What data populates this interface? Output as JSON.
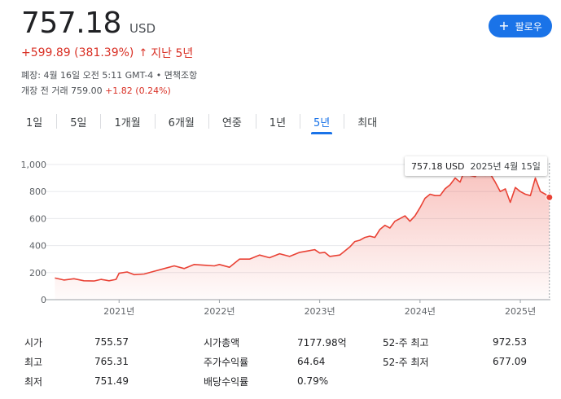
{
  "quote": {
    "price": "757.18",
    "currency": "USD",
    "change": "+599.89 (381.39%)",
    "change_arrow": "↑",
    "period_label": "지난 5년",
    "close_meta": "폐장: 4월 16일 오전 5:11 GMT-4 • 면책조항",
    "premarket_prefix": "개장 전 거래 759.00",
    "premarket_change": "+1.82 (0.24%)"
  },
  "follow_button": {
    "icon": "plus-icon",
    "label": "팔로우"
  },
  "range_tabs": [
    "1일",
    "5일",
    "1개월",
    "6개월",
    "연중",
    "1년",
    "5년",
    "최대"
  ],
  "active_tab": "5년",
  "tooltip": {
    "value": "757.18 USD",
    "date": "2025년 4월 15일"
  },
  "colors": {
    "accent": "#1a73e8",
    "negative": "#d93025",
    "line": "#e94235"
  },
  "stats": {
    "col1": [
      {
        "label": "시가",
        "value": "755.57"
      },
      {
        "label": "최고",
        "value": "765.31"
      },
      {
        "label": "최저",
        "value": "751.49"
      }
    ],
    "col2": [
      {
        "label": "시가총액",
        "value": "7177.98억"
      },
      {
        "label": "주가수익률",
        "value": "64.64"
      },
      {
        "label": "배당수익률",
        "value": "0.79%"
      }
    ],
    "col3": [
      {
        "label": "52-주 최고",
        "value": "972.53"
      },
      {
        "label": "52-주 최저",
        "value": "677.09"
      }
    ]
  },
  "chart_data": {
    "type": "area",
    "ylim": [
      0,
      1000
    ],
    "yticks": [
      "0",
      "200",
      "400",
      "600",
      "800",
      "1,000"
    ],
    "xlim": [
      2020.3,
      2025.3
    ],
    "xtick_positions": [
      2021,
      2022,
      2023,
      2024,
      2025
    ],
    "xtick_labels": [
      "2021년",
      "2022년",
      "2023년",
      "2024년",
      "2025년"
    ],
    "grid": true,
    "series": [
      {
        "x": [
          2020.36,
          2020.45,
          2020.55,
          2020.65,
          2020.75,
          2020.82,
          2020.9,
          2020.97,
          2021.0,
          2021.08,
          2021.15,
          2021.25,
          2021.35,
          2021.45,
          2021.55,
          2021.65,
          2021.75,
          2021.85,
          2021.95,
          2022.0,
          2022.1,
          2022.2,
          2022.3,
          2022.4,
          2022.5,
          2022.6,
          2022.7,
          2022.8,
          2022.88,
          2022.95,
          2023.0,
          2023.05,
          2023.1,
          2023.2,
          2023.3,
          2023.35,
          2023.4,
          2023.45,
          2023.5,
          2023.55,
          2023.6,
          2023.65,
          2023.7,
          2023.75,
          2023.8,
          2023.85,
          2023.9,
          2023.95,
          2024.0,
          2024.05,
          2024.1,
          2024.15,
          2024.2,
          2024.25,
          2024.3,
          2024.35,
          2024.4,
          2024.45,
          2024.5,
          2024.55,
          2024.6,
          2024.65,
          2024.7,
          2024.75,
          2024.8,
          2024.85,
          2024.9,
          2024.95,
          2025.0,
          2025.05,
          2025.1,
          2025.15,
          2025.2,
          2025.25,
          2025.29
        ],
        "y": [
          160,
          145,
          155,
          140,
          138,
          150,
          140,
          150,
          195,
          205,
          185,
          190,
          210,
          230,
          250,
          230,
          260,
          255,
          250,
          260,
          240,
          300,
          300,
          330,
          310,
          340,
          320,
          350,
          360,
          370,
          345,
          350,
          320,
          330,
          390,
          430,
          440,
          460,
          470,
          460,
          520,
          550,
          530,
          580,
          600,
          620,
          580,
          620,
          680,
          750,
          780,
          770,
          770,
          820,
          850,
          900,
          870,
          970,
          920,
          910,
          960,
          920,
          930,
          870,
          800,
          820,
          720,
          830,
          800,
          780,
          770,
          900,
          800,
          780,
          757
        ]
      }
    ]
  }
}
